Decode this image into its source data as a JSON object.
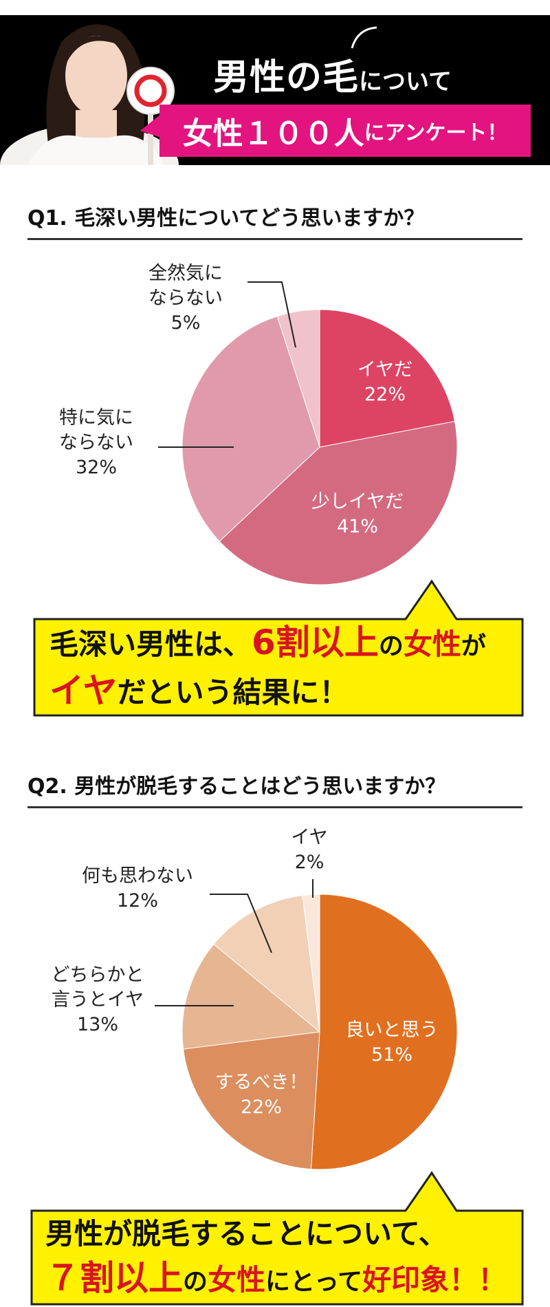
{
  "header": {
    "title_part1": "男性の毛",
    "title_part2": "について",
    "subtitle_part1": "女性１００人",
    "subtitle_part2": "にアンケート！"
  },
  "q1": {
    "question": "Q1. 毛深い男性についてどう思いますか？",
    "labels": [
      {
        "line1": "イヤだ",
        "line2": "22%"
      },
      {
        "line1": "少しイヤだ",
        "line2": "41%"
      },
      {
        "line1": "特に気に",
        "line2": "ならない",
        "line3": "32%"
      },
      {
        "line1": "全然気に",
        "line2": "ならない",
        "line3": "5%"
      }
    ],
    "callout": {
      "part1": "毛深い男性は、",
      "part2": "6割以上",
      "part3": "の",
      "part4": "女性",
      "part5": "が",
      "part6": "イヤ",
      "part7": "だという結果に！"
    }
  },
  "q2": {
    "question": "Q2. 男性が脱毛することはどう思いますか？",
    "labels": [
      {
        "line1": "良いと思う",
        "line2": "51%"
      },
      {
        "line1": "するべき！",
        "line2": "22%"
      },
      {
        "line1": "どちらかと",
        "line2": "言うとイヤ",
        "line3": "13%"
      },
      {
        "line1": "何も思わない",
        "line2": "12%"
      },
      {
        "line1": "イヤ",
        "line2": "2%"
      }
    ],
    "callout": {
      "part1": "男性が脱毛することについて、",
      "part2": "７割以上",
      "part3": "の",
      "part4": "女性",
      "part5": "にとって",
      "part6": "好印象！！"
    }
  },
  "chart_data": [
    {
      "type": "pie",
      "title": "Q1. 毛深い男性についてどう思いますか？",
      "categories": [
        "イヤだ",
        "少しイヤだ",
        "特に気にならない",
        "全然気にならない"
      ],
      "values": [
        22,
        41,
        32,
        5
      ],
      "colors": [
        "#dd4464",
        "#d46a80",
        "#e09aac",
        "#f0c2cc"
      ]
    },
    {
      "type": "pie",
      "title": "Q2. 男性が脱毛することはどう思いますか？",
      "categories": [
        "良いと思う",
        "するべき！",
        "どちらかと言うとイヤ",
        "何も思わない",
        "イヤ"
      ],
      "values": [
        51,
        22,
        13,
        12,
        2
      ],
      "colors": [
        "#e07020",
        "#dc8e5e",
        "#e6b692",
        "#f2d0b6",
        "#f8e8dc"
      ]
    }
  ]
}
